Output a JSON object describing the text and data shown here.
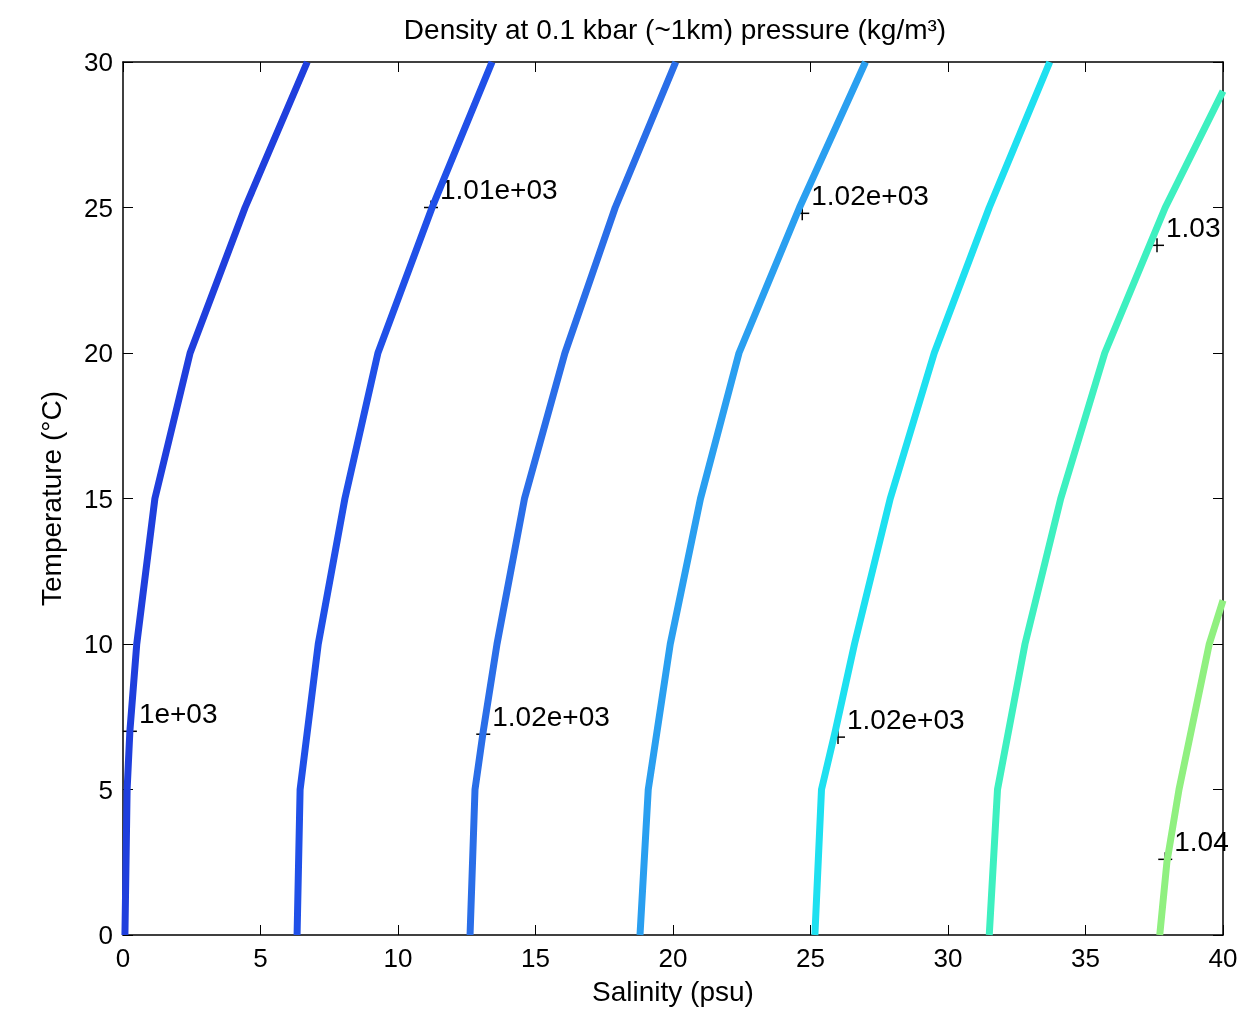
{
  "chart_data": {
    "type": "line",
    "title": "Density at 0.1 kbar (~1km) pressure (kg/m³)",
    "xlabel": "Salinity (psu)",
    "ylabel": "Temperature (°C)",
    "xlim": [
      0,
      40
    ],
    "xticks": [
      0,
      5,
      10,
      15,
      20,
      25,
      30,
      35,
      40
    ],
    "ylim": [
      0,
      30
    ],
    "yticks": [
      0,
      5,
      10,
      15,
      20,
      25,
      30
    ],
    "grid": false,
    "marker": "none",
    "line_style": "solid",
    "series": [
      {
        "color": "#1f3fdd",
        "x": [
          0.07,
          0.15,
          0.25,
          0.5,
          1.16,
          2.44,
          4.44,
          6.7
        ],
        "values": [
          0,
          5,
          7,
          10,
          15,
          20,
          25,
          30
        ]
      },
      {
        "color": "#2050e8",
        "x": [
          6.33,
          6.44,
          7.1,
          8.07,
          9.27,
          11.24,
          13.42
        ],
        "values": [
          0,
          5,
          10,
          15,
          20,
          25,
          30
        ]
      },
      {
        "color": "#2a6ee8",
        "x": [
          12.62,
          12.8,
          13.1,
          13.6,
          14.6,
          16.07,
          17.9,
          20.1
        ],
        "values": [
          0,
          5,
          7,
          10,
          15,
          20,
          25,
          30
        ]
      },
      {
        "color": "#2a9ff0",
        "x": [
          18.8,
          19.1,
          19.9,
          21,
          22.4,
          24.6,
          27.0
        ],
        "values": [
          0,
          5,
          10,
          15,
          20,
          25,
          30
        ]
      },
      {
        "color": "#1ee0f0",
        "x": [
          25.16,
          25.4,
          25.9,
          26.6,
          27.9,
          29.5,
          31.5,
          33.7
        ],
        "values": [
          0,
          5,
          7,
          10,
          15,
          20,
          25,
          30
        ]
      },
      {
        "color": "#3ef0c0",
        "x": [
          31.5,
          31.8,
          32.8,
          34.1,
          35.7,
          37.9,
          40
        ],
        "values": [
          0,
          5,
          10,
          15,
          20,
          25,
          29
        ]
      },
      {
        "color": "#90f080",
        "x": [
          37.7,
          37.96,
          38.4,
          39.5,
          40
        ],
        "values": [
          0,
          2.5,
          5,
          10,
          11.5
        ]
      }
    ],
    "annotations": [
      {
        "text": "1e+03",
        "x": 0.25,
        "y": 7
      },
      {
        "text": "1.01e+03",
        "x": 11.2,
        "y": 25
      },
      {
        "text": "1.02e+03",
        "x": 13.1,
        "y": 6.9
      },
      {
        "text": "1.02e+03",
        "x": 24.7,
        "y": 24.8
      },
      {
        "text": "1.02e+03",
        "x": 26,
        "y": 6.8
      },
      {
        "text": "1.03",
        "x": 37.6,
        "y": 23.7
      },
      {
        "text": "1.04",
        "x": 37.9,
        "y": 2.6
      }
    ]
  }
}
